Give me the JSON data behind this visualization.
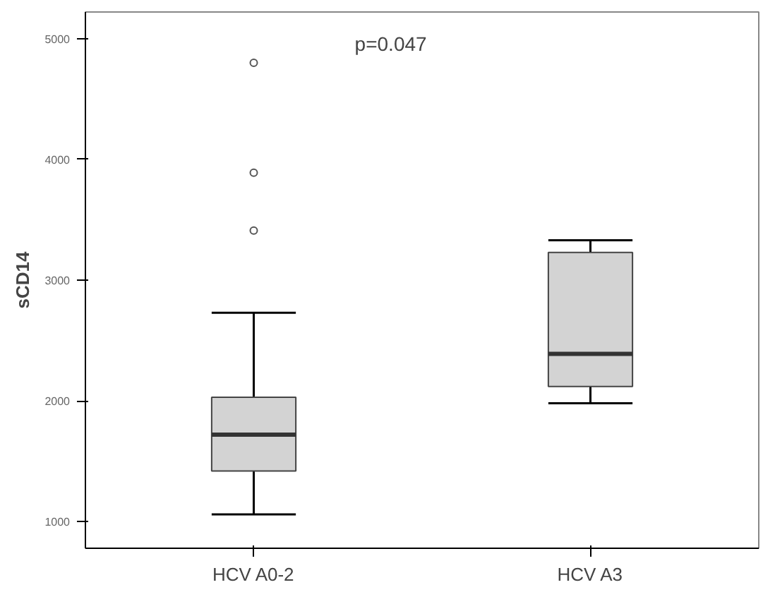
{
  "chart_data": {
    "type": "box",
    "ylabel": "sCD14",
    "categories": [
      "HCV A0-2",
      "HCV A3"
    ],
    "boxes": [
      {
        "low": 1060,
        "q1": 1420,
        "median": 1720,
        "q3": 2030,
        "high": 2730,
        "outliers": [
          3410,
          3890,
          4800
        ]
      },
      {
        "low": 1980,
        "q1": 2120,
        "median": 2390,
        "q3": 3230,
        "high": 3330
      }
    ],
    "color": "#d3d3d3",
    "ylim": [
      780,
      5220
    ],
    "yticks": [
      1000,
      2000,
      3000,
      4000,
      5000
    ],
    "grid": false,
    "annotations": [
      "p=0.047"
    ]
  }
}
